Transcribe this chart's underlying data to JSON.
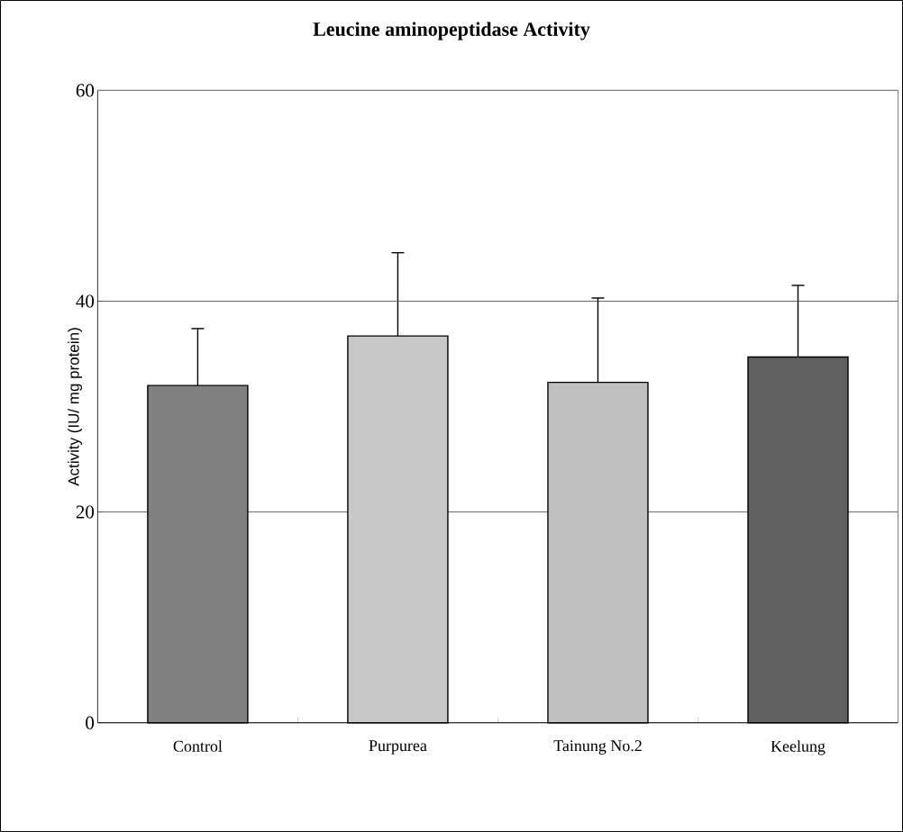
{
  "chart_data": {
    "type": "bar",
    "title": "Leucine aminopeptidase Activity",
    "ylabel": "Activity (IU/ mg protein)",
    "categories": [
      "Control",
      "Purpurea",
      "Tainung No.2",
      "Keelung"
    ],
    "values": [
      32.0,
      36.7,
      32.3,
      34.7
    ],
    "errors": [
      [
        32.0,
        37.4
      ],
      [
        36.7,
        44.6
      ],
      [
        32.3,
        40.3
      ],
      [
        34.7,
        41.5
      ]
    ],
    "colors": [
      "#808080",
      "#c8c8c8",
      "#c0c0c0",
      "#606060"
    ],
    "ylim": [
      0,
      60
    ],
    "yticks": [
      0,
      20,
      40,
      60
    ],
    "grid": "y"
  }
}
